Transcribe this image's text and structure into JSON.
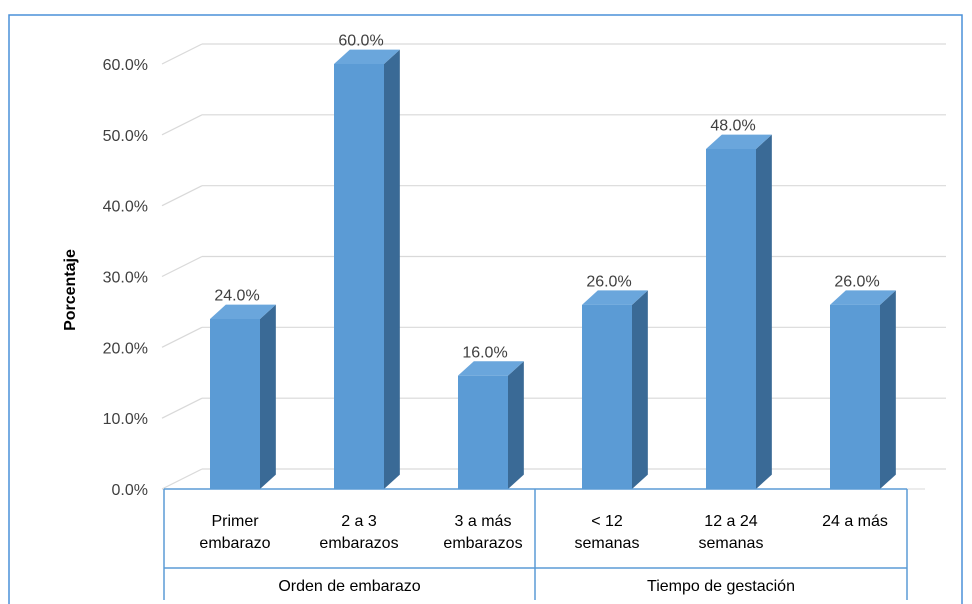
{
  "chart_data": {
    "type": "bar",
    "style": "3d-column",
    "ylabel": "Porcentaje",
    "ylim": [
      0,
      60
    ],
    "yticks": [
      "0.0%",
      "10.0%",
      "20.0%",
      "30.0%",
      "40.0%",
      "50.0%",
      "60.0%"
    ],
    "grid": true,
    "legend": "none",
    "groups": [
      {
        "label": "Orden de embarazo",
        "categories": [
          {
            "lines": [
              "Primer",
              "embarazo"
            ],
            "value": 24.0,
            "value_label": "24.0%"
          },
          {
            "lines": [
              "2 a 3",
              "embarazos"
            ],
            "value": 60.0,
            "value_label": "60.0%"
          },
          {
            "lines": [
              "3 a más",
              "embarazos"
            ],
            "value": 16.0,
            "value_label": "16.0%"
          }
        ]
      },
      {
        "label": "Tiempo de gestación",
        "categories": [
          {
            "lines": [
              "< 12",
              "semanas"
            ],
            "value": 26.0,
            "value_label": "26.0%"
          },
          {
            "lines": [
              "12 a 24",
              "semanas"
            ],
            "value": 48.0,
            "value_label": "48.0%"
          },
          {
            "lines": [
              "24 a más"
            ],
            "value": 26.0,
            "value_label": "26.0%"
          }
        ]
      }
    ],
    "colors": {
      "bar_front": "#5b9bd5",
      "bar_side": "#3a6a96",
      "bar_top": "#6aa6dc",
      "grid": "#d9d9d9",
      "axis_box": "#5b9bd5",
      "text": "#404040",
      "frame": "#4a90d9"
    }
  }
}
